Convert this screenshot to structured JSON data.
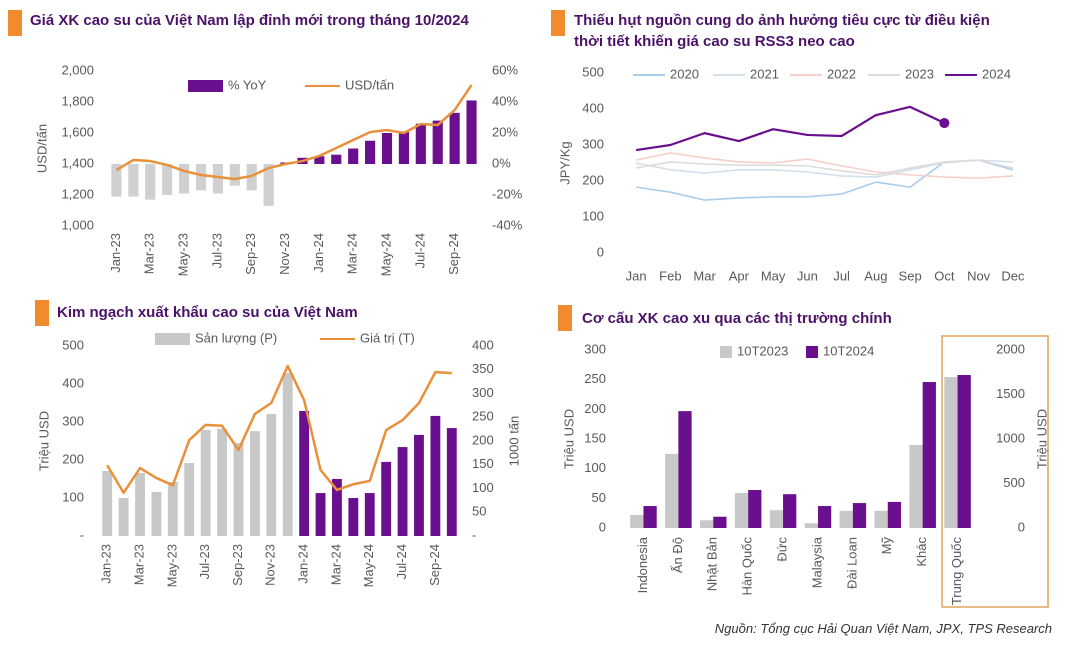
{
  "chart_data": [
    {
      "type": "combo",
      "title": "Giá XK cao su của Việt Nam lập đỉnh mới trong tháng 10/2024",
      "categories": [
        "Jan-23",
        null,
        "Mar-23",
        null,
        "May-23",
        null,
        "Jul-23",
        null,
        "Sep-23",
        null,
        "Nov-23",
        null,
        "Jan-24",
        null,
        "Mar-24",
        null,
        "May-24",
        null,
        "Jul-24",
        null,
        "Sep-24",
        null
      ],
      "series": [
        {
          "name": "% YoY",
          "kind": "bar",
          "axis": "y2",
          "color": "#6a0f8e",
          "colors": [
            "#d0d0d0",
            "#d0d0d0",
            "#d0d0d0",
            "#d0d0d0",
            "#d0d0d0",
            "#d0d0d0",
            "#d0d0d0",
            "#d0d0d0",
            "#d0d0d0",
            "#d0d0d0",
            "#6a0f8e",
            "#6a0f8e",
            "#6a0f8e",
            "#6a0f8e",
            "#6a0f8e",
            "#6a0f8e",
            "#6a0f8e",
            "#6a0f8e",
            "#6a0f8e",
            "#6a0f8e",
            "#6a0f8e",
            "#6a0f8e"
          ],
          "values": [
            -21,
            -21,
            -23,
            -20,
            -19,
            -17,
            -19,
            -14,
            -17,
            -27,
            1,
            4,
            5,
            6,
            10,
            15,
            20,
            21,
            26,
            28,
            33,
            41
          ]
        },
        {
          "name": "USD/tấn",
          "kind": "line",
          "color": "#e8913a",
          "values": [
            1361,
            1426,
            1419,
            1394,
            1355,
            1329,
            1316,
            1303,
            1323,
            1374,
            1400,
            1419,
            1452,
            1503,
            1555,
            1606,
            1619,
            1600,
            1658,
            1652,
            1748,
            1910
          ]
        }
      ],
      "y_label": "USD/tấn",
      "ylim": [
        1000,
        2000
      ],
      "yticks": [
        {
          "value": 1000,
          "label": "1,000"
        },
        {
          "value": 1200,
          "label": "1,200"
        },
        {
          "value": 1400,
          "label": "1,400"
        },
        {
          "value": 1600,
          "label": "1,600"
        },
        {
          "value": 1800,
          "label": "1,800"
        },
        {
          "value": 2000,
          "label": "2,000"
        }
      ],
      "y2lim": [
        -40,
        60
      ],
      "y2ticks": [
        {
          "value": -40,
          "label": "-40%"
        },
        {
          "value": -20,
          "label": "-20%"
        },
        {
          "value": 0,
          "label": "0%"
        },
        {
          "value": 20,
          "label": "20%"
        },
        {
          "value": 40,
          "label": "40%"
        },
        {
          "value": 60,
          "label": "60%"
        }
      ]
    },
    {
      "type": "line",
      "title": "Thiếu hụt nguồn cung do ảnh hưởng tiêu cực từ điều kiện thời tiết khiến giá cao su RSS3 neo cao",
      "categories": [
        "Jan",
        "Feb",
        "Mar",
        "Apr",
        "May",
        "Jun",
        "Jul",
        "Aug",
        "Sep",
        "Oct",
        "Nov",
        "Dec"
      ],
      "series": [
        {
          "name": "2020",
          "color": "#a9cdea",
          "values": [
            183,
            169,
            147,
            153,
            156,
            156,
            164,
            197,
            183,
            253,
            258,
            231
          ]
        },
        {
          "name": "2021",
          "color": "#d3dfea",
          "values": [
            250,
            231,
            222,
            231,
            231,
            225,
            214,
            211,
            231,
            250,
            258,
            253
          ]
        },
        {
          "name": "2022",
          "color": "#f6cfca",
          "values": [
            258,
            278,
            264,
            253,
            250,
            261,
            242,
            225,
            217,
            211,
            208,
            214
          ]
        },
        {
          "name": "2023",
          "color": "#dcdcdc",
          "values": [
            236,
            253,
            247,
            244,
            244,
            242,
            228,
            217,
            236,
            253,
            258,
            236
          ]
        },
        {
          "name": "2024",
          "color": "#6a0f8e",
          "end_marker": true,
          "values": [
            286,
            300,
            333,
            311,
            344,
            328,
            325,
            383,
            406,
            361,
            null,
            null
          ]
        }
      ],
      "y_label": "JPY/Kg",
      "ylim": [
        0,
        500
      ],
      "yticks": [
        0,
        100,
        200,
        300,
        400,
        500
      ]
    },
    {
      "type": "combo",
      "title": "Kim ngạch xuất khẩu cao su của Việt Nam",
      "categories": [
        "Jan-23",
        null,
        "Mar-23",
        null,
        "May-23",
        null,
        "Jul-23",
        null,
        "Sep-23",
        null,
        "Nov-23",
        null,
        "Jan-24",
        null,
        "Mar-24",
        null,
        "May-24",
        null,
        "Jul-24",
        null,
        "Sep-24",
        null
      ],
      "series": [
        {
          "name": "Sản lượng (P)",
          "kind": "bar",
          "color": "#c8c8c8",
          "colors": [
            "#c8c8c8",
            "#c8c8c8",
            "#c8c8c8",
            "#c8c8c8",
            "#c8c8c8",
            "#c8c8c8",
            "#c8c8c8",
            "#c8c8c8",
            "#c8c8c8",
            "#c8c8c8",
            "#c8c8c8",
            "#c8c8c8",
            "#6a0f8e",
            "#6a0f8e",
            "#6a0f8e",
            "#6a0f8e",
            "#6a0f8e",
            "#6a0f8e",
            "#6a0f8e",
            "#6a0f8e",
            "#6a0f8e",
            "#6a0f8e"
          ],
          "values": [
            171,
            100,
            166,
            116,
            142,
            192,
            279,
            282,
            245,
            276,
            321,
            429,
            329,
            113,
            150,
            100,
            113,
            195,
            234,
            266,
            316,
            284
          ]
        },
        {
          "name": "Giá trị (T)",
          "kind": "line",
          "axis": "y2",
          "color": "#e8913a",
          "values": [
            149,
            91,
            143,
            122,
            107,
            202,
            234,
            232,
            181,
            257,
            280,
            358,
            286,
            139,
            97,
            109,
            116,
            223,
            244,
            280,
            345,
            343
          ]
        }
      ],
      "y_label": "Triệu USD",
      "y2_label": "1000 tấn",
      "ylim": [
        0,
        500
      ],
      "yticks": [
        {
          "value": 0,
          "label": "-"
        },
        100,
        200,
        300,
        400,
        500
      ],
      "y2lim": [
        0,
        400
      ],
      "y2ticks": [
        {
          "value": 0,
          "label": "-"
        },
        50,
        100,
        150,
        200,
        250,
        300,
        350,
        400
      ]
    },
    {
      "type": "bar",
      "title": "Cơ cấu XK cao xu qua các thị trường chính",
      "categories": [
        "Indonesia",
        "Ấn Độ",
        "Nhật Bản",
        "Hàn Quốc",
        "Đức",
        "Malaysia",
        "Đài Loan",
        "Mỹ",
        "Khác",
        "Trung Quốc"
      ],
      "category_axis": [
        "y",
        "y",
        "y",
        "y",
        "y",
        "y",
        "y",
        "y",
        "y",
        "y2"
      ],
      "series": [
        {
          "name": "10T2023",
          "color": "#c8c8c8",
          "values": [
            22,
            125,
            13,
            59,
            30,
            8,
            29,
            29,
            140,
            1697
          ]
        },
        {
          "name": "10T2024",
          "color": "#6a0f8e",
          "values": [
            37,
            197,
            19,
            64,
            57,
            37,
            42,
            44,
            246,
            1719
          ]
        }
      ],
      "y_label": "Triệu USD",
      "y2_label": "Triệu USD",
      "ylim": [
        0,
        300
      ],
      "yticks": [
        0,
        50,
        100,
        150,
        200,
        250,
        300
      ],
      "y2lim": [
        0,
        2000
      ],
      "y2ticks": [
        0,
        500,
        1000,
        1500,
        2000
      ]
    }
  ],
  "source": "Nguồn: Tổng cục Hải Quan Việt Nam, JPX, TPS Research"
}
